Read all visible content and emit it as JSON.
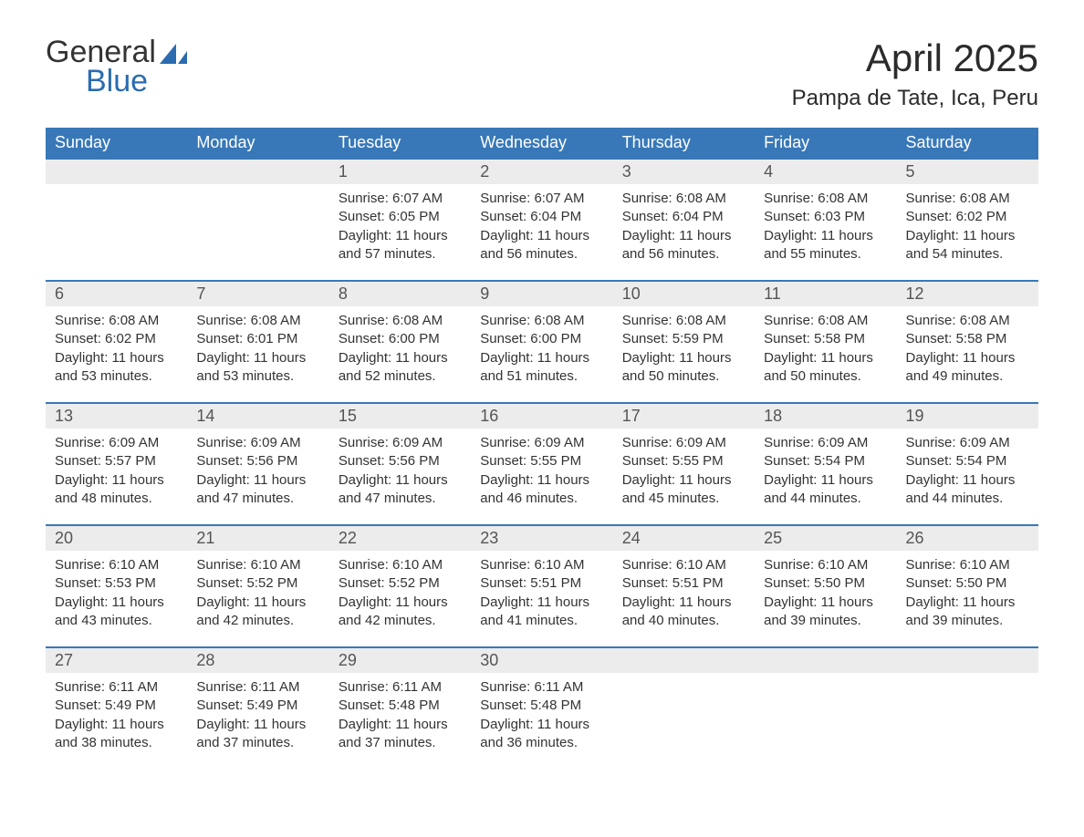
{
  "logo": {
    "line1": "General",
    "line2": "Blue",
    "mark_color": "#2b6cb0"
  },
  "title": "April 2025",
  "location": "Pampa de Tate, Ica, Peru",
  "colors": {
    "header_bg": "#3878b8",
    "header_text": "#ffffff",
    "daynum_bg": "#ececec",
    "row_border": "#3878b8",
    "body_text": "#333333",
    "logo_accent": "#2b6cb0",
    "background": "#ffffff"
  },
  "days_of_week": [
    "Sunday",
    "Monday",
    "Tuesday",
    "Wednesday",
    "Thursday",
    "Friday",
    "Saturday"
  ],
  "calendar": {
    "first_weekday_index": 2,
    "labels": {
      "sunrise": "Sunrise:",
      "sunset": "Sunset:",
      "daylight": "Daylight:"
    },
    "days": [
      {
        "n": 1,
        "sunrise": "6:07 AM",
        "sunset": "6:05 PM",
        "daylight": "11 hours and 57 minutes."
      },
      {
        "n": 2,
        "sunrise": "6:07 AM",
        "sunset": "6:04 PM",
        "daylight": "11 hours and 56 minutes."
      },
      {
        "n": 3,
        "sunrise": "6:08 AM",
        "sunset": "6:04 PM",
        "daylight": "11 hours and 56 minutes."
      },
      {
        "n": 4,
        "sunrise": "6:08 AM",
        "sunset": "6:03 PM",
        "daylight": "11 hours and 55 minutes."
      },
      {
        "n": 5,
        "sunrise": "6:08 AM",
        "sunset": "6:02 PM",
        "daylight": "11 hours and 54 minutes."
      },
      {
        "n": 6,
        "sunrise": "6:08 AM",
        "sunset": "6:02 PM",
        "daylight": "11 hours and 53 minutes."
      },
      {
        "n": 7,
        "sunrise": "6:08 AM",
        "sunset": "6:01 PM",
        "daylight": "11 hours and 53 minutes."
      },
      {
        "n": 8,
        "sunrise": "6:08 AM",
        "sunset": "6:00 PM",
        "daylight": "11 hours and 52 minutes."
      },
      {
        "n": 9,
        "sunrise": "6:08 AM",
        "sunset": "6:00 PM",
        "daylight": "11 hours and 51 minutes."
      },
      {
        "n": 10,
        "sunrise": "6:08 AM",
        "sunset": "5:59 PM",
        "daylight": "11 hours and 50 minutes."
      },
      {
        "n": 11,
        "sunrise": "6:08 AM",
        "sunset": "5:58 PM",
        "daylight": "11 hours and 50 minutes."
      },
      {
        "n": 12,
        "sunrise": "6:08 AM",
        "sunset": "5:58 PM",
        "daylight": "11 hours and 49 minutes."
      },
      {
        "n": 13,
        "sunrise": "6:09 AM",
        "sunset": "5:57 PM",
        "daylight": "11 hours and 48 minutes."
      },
      {
        "n": 14,
        "sunrise": "6:09 AM",
        "sunset": "5:56 PM",
        "daylight": "11 hours and 47 minutes."
      },
      {
        "n": 15,
        "sunrise": "6:09 AM",
        "sunset": "5:56 PM",
        "daylight": "11 hours and 47 minutes."
      },
      {
        "n": 16,
        "sunrise": "6:09 AM",
        "sunset": "5:55 PM",
        "daylight": "11 hours and 46 minutes."
      },
      {
        "n": 17,
        "sunrise": "6:09 AM",
        "sunset": "5:55 PM",
        "daylight": "11 hours and 45 minutes."
      },
      {
        "n": 18,
        "sunrise": "6:09 AM",
        "sunset": "5:54 PM",
        "daylight": "11 hours and 44 minutes."
      },
      {
        "n": 19,
        "sunrise": "6:09 AM",
        "sunset": "5:54 PM",
        "daylight": "11 hours and 44 minutes."
      },
      {
        "n": 20,
        "sunrise": "6:10 AM",
        "sunset": "5:53 PM",
        "daylight": "11 hours and 43 minutes."
      },
      {
        "n": 21,
        "sunrise": "6:10 AM",
        "sunset": "5:52 PM",
        "daylight": "11 hours and 42 minutes."
      },
      {
        "n": 22,
        "sunrise": "6:10 AM",
        "sunset": "5:52 PM",
        "daylight": "11 hours and 42 minutes."
      },
      {
        "n": 23,
        "sunrise": "6:10 AM",
        "sunset": "5:51 PM",
        "daylight": "11 hours and 41 minutes."
      },
      {
        "n": 24,
        "sunrise": "6:10 AM",
        "sunset": "5:51 PM",
        "daylight": "11 hours and 40 minutes."
      },
      {
        "n": 25,
        "sunrise": "6:10 AM",
        "sunset": "5:50 PM",
        "daylight": "11 hours and 39 minutes."
      },
      {
        "n": 26,
        "sunrise": "6:10 AM",
        "sunset": "5:50 PM",
        "daylight": "11 hours and 39 minutes."
      },
      {
        "n": 27,
        "sunrise": "6:11 AM",
        "sunset": "5:49 PM",
        "daylight": "11 hours and 38 minutes."
      },
      {
        "n": 28,
        "sunrise": "6:11 AM",
        "sunset": "5:49 PM",
        "daylight": "11 hours and 37 minutes."
      },
      {
        "n": 29,
        "sunrise": "6:11 AM",
        "sunset": "5:48 PM",
        "daylight": "11 hours and 37 minutes."
      },
      {
        "n": 30,
        "sunrise": "6:11 AM",
        "sunset": "5:48 PM",
        "daylight": "11 hours and 36 minutes."
      }
    ]
  }
}
